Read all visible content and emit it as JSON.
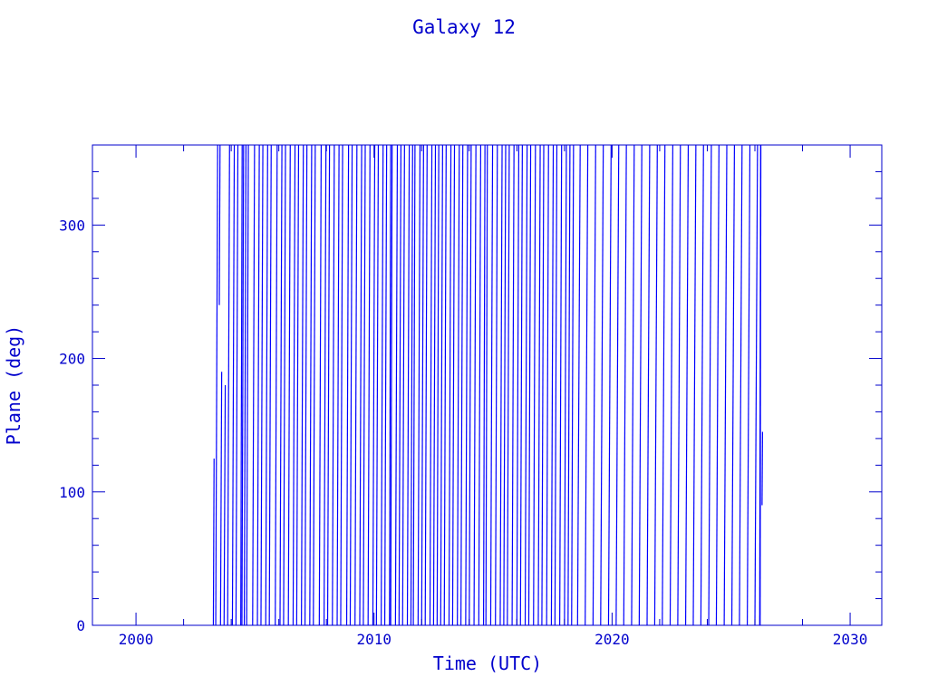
{
  "chart_data": {
    "type": "line",
    "title": "Galaxy 12",
    "xlabel": "Time (UTC)",
    "ylabel": "Plane (deg)",
    "xlim": [
      1998.17,
      2031.33
    ],
    "ylim": [
      0,
      360
    ],
    "xticks": [
      2000,
      2010,
      2020,
      2030
    ],
    "xtick_labels": [
      "2000",
      "2010",
      "2020",
      "2030"
    ],
    "x_minor_step": 2,
    "yticks": [
      0,
      100,
      200,
      300
    ],
    "ytick_labels": [
      "0",
      "100",
      "200",
      "300"
    ],
    "y_minor_step": 20,
    "grid": false,
    "color": "#0000ff",
    "axis_color": "#0000cc",
    "ramps_0_to_360": [
      [
        2003.35,
        2003.43
      ],
      [
        2003.85,
        2003.93
      ],
      [
        2004.05,
        2004.13
      ],
      [
        2004.2,
        2004.28
      ],
      [
        2004.4,
        2004.46
      ],
      [
        2004.45,
        2004.52
      ],
      [
        2004.55,
        2004.62
      ],
      [
        2004.65,
        2004.72
      ],
      [
        2004.9,
        2004.98
      ],
      [
        2005.1,
        2005.18
      ],
      [
        2005.25,
        2005.33
      ],
      [
        2005.45,
        2005.53
      ],
      [
        2005.6,
        2005.68
      ],
      [
        2005.85,
        2005.93
      ],
      [
        2006.05,
        2006.13
      ],
      [
        2006.2,
        2006.28
      ],
      [
        2006.4,
        2006.48
      ],
      [
        2006.6,
        2006.68
      ],
      [
        2006.75,
        2006.83
      ],
      [
        2006.95,
        2007.03
      ],
      [
        2007.1,
        2007.18
      ],
      [
        2007.3,
        2007.38
      ],
      [
        2007.45,
        2007.53
      ],
      [
        2007.7,
        2007.78
      ],
      [
        2007.9,
        2007.98
      ],
      [
        2008.05,
        2008.13
      ],
      [
        2008.25,
        2008.33
      ],
      [
        2008.45,
        2008.53
      ],
      [
        2008.6,
        2008.68
      ],
      [
        2008.85,
        2008.93
      ],
      [
        2009.0,
        2009.08
      ],
      [
        2009.2,
        2009.28
      ],
      [
        2009.4,
        2009.48
      ],
      [
        2009.55,
        2009.63
      ],
      [
        2009.75,
        2009.83
      ],
      [
        2009.95,
        2010.03
      ],
      [
        2010.1,
        2010.18
      ],
      [
        2010.3,
        2010.38
      ],
      [
        2010.45,
        2010.53
      ],
      [
        2010.65,
        2010.7
      ],
      [
        2010.7,
        2010.76
      ],
      [
        2010.9,
        2010.98
      ],
      [
        2011.05,
        2011.13
      ],
      [
        2011.2,
        2011.28
      ],
      [
        2011.4,
        2011.48
      ],
      [
        2011.55,
        2011.62
      ],
      [
        2011.65,
        2011.72
      ],
      [
        2011.85,
        2011.93
      ],
      [
        2012.0,
        2012.08
      ],
      [
        2012.15,
        2012.23
      ],
      [
        2012.35,
        2012.43
      ],
      [
        2012.5,
        2012.58
      ],
      [
        2012.65,
        2012.72
      ],
      [
        2012.8,
        2012.88
      ],
      [
        2012.95,
        2013.03
      ],
      [
        2013.15,
        2013.23
      ],
      [
        2013.3,
        2013.38
      ],
      [
        2013.5,
        2013.58
      ],
      [
        2013.65,
        2013.73
      ],
      [
        2013.85,
        2013.93
      ],
      [
        2014.0,
        2014.08
      ],
      [
        2014.2,
        2014.28
      ],
      [
        2014.4,
        2014.48
      ],
      [
        2014.6,
        2014.66
      ],
      [
        2014.7,
        2014.76
      ],
      [
        2014.9,
        2014.98
      ],
      [
        2015.1,
        2015.18
      ],
      [
        2015.3,
        2015.38
      ],
      [
        2015.45,
        2015.53
      ],
      [
        2015.6,
        2015.68
      ],
      [
        2015.8,
        2015.88
      ],
      [
        2016.0,
        2016.08
      ],
      [
        2016.15,
        2016.23
      ],
      [
        2016.35,
        2016.43
      ],
      [
        2016.5,
        2016.58
      ],
      [
        2016.7,
        2016.78
      ],
      [
        2016.9,
        2016.98
      ],
      [
        2017.05,
        2017.13
      ],
      [
        2017.25,
        2017.33
      ],
      [
        2017.45,
        2017.53
      ],
      [
        2017.6,
        2017.68
      ],
      [
        2017.8,
        2017.88
      ],
      [
        2018.0,
        2018.08
      ],
      [
        2018.15,
        2018.23
      ],
      [
        2018.3,
        2018.38
      ],
      [
        2018.55,
        2018.66
      ],
      [
        2018.87,
        2018.98
      ],
      [
        2019.2,
        2019.31
      ],
      [
        2019.52,
        2019.63
      ],
      [
        2019.85,
        2019.96
      ],
      [
        2020.17,
        2020.28
      ],
      [
        2020.49,
        2020.6
      ],
      [
        2020.82,
        2020.93
      ],
      [
        2021.14,
        2021.25
      ],
      [
        2021.47,
        2021.58
      ],
      [
        2021.79,
        2021.9
      ],
      [
        2022.11,
        2022.22
      ],
      [
        2022.44,
        2022.55
      ],
      [
        2022.76,
        2022.87
      ],
      [
        2023.09,
        2023.2
      ],
      [
        2023.41,
        2023.52
      ],
      [
        2023.73,
        2023.84
      ],
      [
        2024.06,
        2024.17
      ],
      [
        2024.38,
        2024.49
      ],
      [
        2024.71,
        2024.82
      ],
      [
        2025.03,
        2025.14
      ],
      [
        2025.35,
        2025.46
      ],
      [
        2025.68,
        2025.79
      ],
      [
        2026.0,
        2026.11
      ],
      [
        2026.2,
        2026.24
      ],
      [
        2026.22,
        2026.25
      ]
    ],
    "partial_segments": [
      [
        2003.25,
        0,
        2003.28,
        125
      ],
      [
        2003.5,
        240,
        2003.53,
        360
      ],
      [
        2003.55,
        0,
        2003.6,
        190
      ],
      [
        2003.7,
        0,
        2003.75,
        180
      ],
      [
        2026.3,
        90,
        2026.32,
        145
      ]
    ]
  }
}
